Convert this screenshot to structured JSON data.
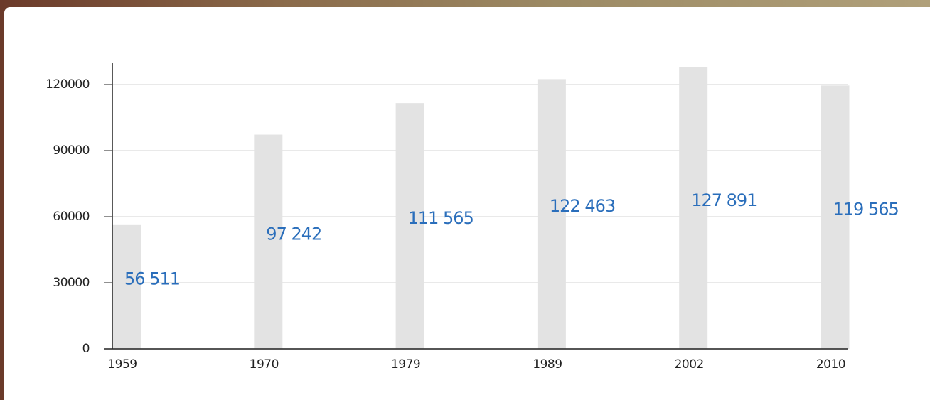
{
  "chart_data": {
    "type": "bar",
    "categories": [
      "1959",
      "1970",
      "1979",
      "1989",
      "2002",
      "2010"
    ],
    "values": [
      56511,
      97242,
      111565,
      122463,
      127891,
      119565
    ],
    "value_labels": [
      "56 511",
      "97 242",
      "111 565",
      "122 463",
      "127 891",
      "119 565"
    ],
    "color": "#e3e3e3",
    "label_color": "#2a6ebb",
    "ylim": [
      0,
      130000
    ],
    "yticks": [
      0,
      30000,
      60000,
      90000,
      120000
    ],
    "grid": true
  }
}
